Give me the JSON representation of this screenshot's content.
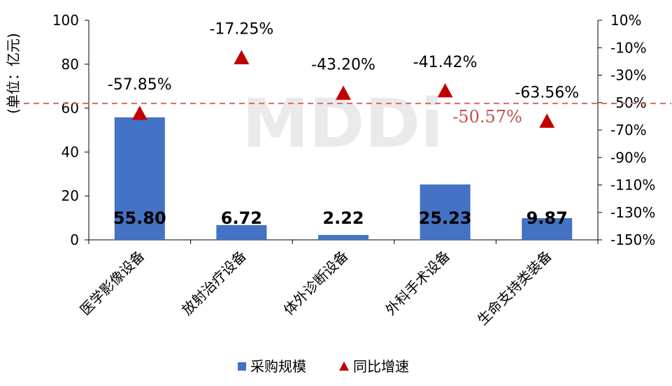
{
  "chart_data": {
    "type": "bar",
    "categories": [
      "医学影像设备",
      "放射治疗设备",
      "体外诊断设备",
      "外科手术设备",
      "生命支持类装备"
    ],
    "series": [
      {
        "name": "采购规模",
        "type": "bar",
        "axis": "left",
        "values": [
          55.8,
          6.72,
          2.22,
          25.23,
          9.87
        ],
        "labels": [
          "55.80",
          "6.72",
          "2.22",
          "25.23",
          "9.87"
        ]
      },
      {
        "name": "同比增速",
        "type": "scatter",
        "axis": "right",
        "marker": "triangle",
        "values": [
          -57.85,
          -17.25,
          -43.2,
          -41.42,
          -63.56
        ],
        "labels": [
          "-57.85%",
          "-17.25%",
          "-43.20%",
          "-41.42%",
          "-63.56%"
        ]
      }
    ],
    "ylabel": "(单位：亿元)",
    "ylim": [
      0,
      100
    ],
    "yticks": [
      "0",
      "20",
      "40",
      "60",
      "80",
      "100"
    ],
    "y2lim": [
      -150,
      10
    ],
    "y2ticks": [
      "-150%",
      "-130%",
      "-110%",
      "-90%",
      "-70%",
      "-50%",
      "-30%",
      "-10%",
      "10%"
    ],
    "reference_line": {
      "value": -50.57,
      "axis": "right",
      "label": "-50.57%",
      "style": "dashed"
    },
    "legend": {
      "position": "bottom",
      "items": [
        "采购规模",
        "同比增速"
      ]
    },
    "watermark": "MDDi",
    "grid": false,
    "colors": {
      "bar": "#4472C4",
      "marker": "#C00000",
      "reference": "#E06666",
      "label_ref": "#C0504D"
    }
  }
}
